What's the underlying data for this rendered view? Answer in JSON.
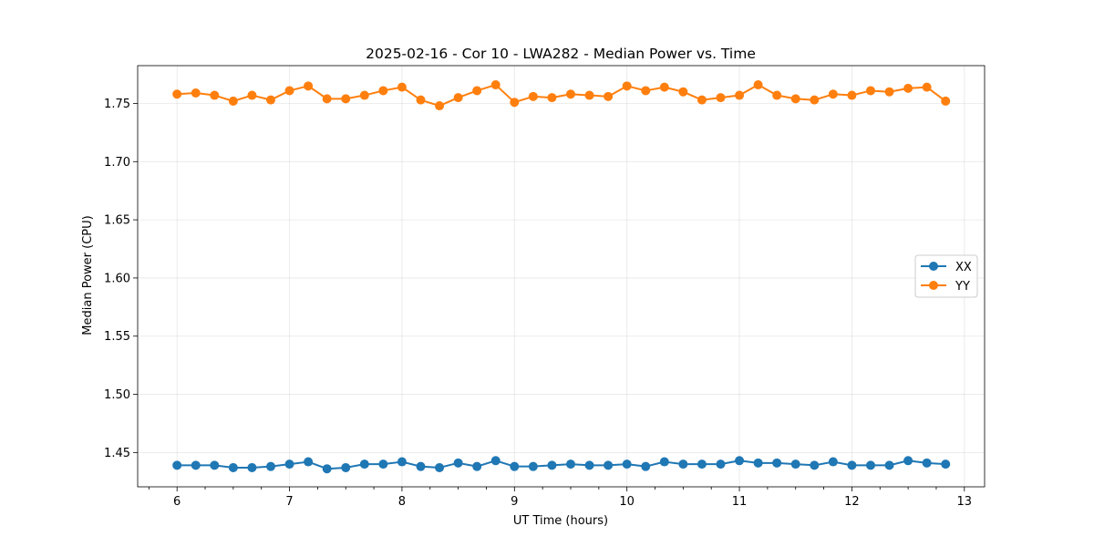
{
  "chart_data": {
    "type": "line",
    "title": "2025-02-16 - Cor 10 - LWA282 - Median Power vs. Time",
    "xlabel": "UT Time (hours)",
    "ylabel": "Median Power (CPU)",
    "xlim": [
      5.65,
      13.18
    ],
    "ylim": [
      1.4205,
      1.7825
    ],
    "xticks": [
      6,
      7,
      8,
      9,
      10,
      11,
      12,
      13
    ],
    "xtick_labels": [
      "6",
      "7",
      "8",
      "9",
      "10",
      "11",
      "12",
      "13"
    ],
    "minor_xticks": [
      5.75,
      6.25,
      6.5,
      6.75,
      7.25,
      7.5,
      7.75,
      8.25,
      8.5,
      8.75,
      9.25,
      9.5,
      9.75,
      10.25,
      10.5,
      10.75,
      11.25,
      11.5,
      11.75,
      12.25,
      12.5,
      12.75,
      13.25
    ],
    "yticks": [
      1.45,
      1.5,
      1.55,
      1.6,
      1.65,
      1.7,
      1.75
    ],
    "ytick_labels": [
      "1.45",
      "1.50",
      "1.55",
      "1.60",
      "1.65",
      "1.70",
      "1.75"
    ],
    "grid": true,
    "legend_position": "center-right",
    "x": [
      6.0,
      6.1667,
      6.3333,
      6.5,
      6.6667,
      6.8333,
      7.0,
      7.1667,
      7.3333,
      7.5,
      7.6667,
      7.8333,
      8.0,
      8.1667,
      8.3333,
      8.5,
      8.6667,
      8.8333,
      9.0,
      9.1667,
      9.3333,
      9.5,
      9.6667,
      9.8333,
      10.0,
      10.1667,
      10.3333,
      10.5,
      10.6667,
      10.8333,
      11.0,
      11.1667,
      11.3333,
      11.5,
      11.6667,
      11.8333,
      12.0,
      12.1667,
      12.3333,
      12.5,
      12.6667,
      12.8333
    ],
    "series": [
      {
        "name": "XX",
        "color": "#1f77b4",
        "values": [
          1.439,
          1.439,
          1.439,
          1.437,
          1.437,
          1.438,
          1.44,
          1.442,
          1.436,
          1.437,
          1.44,
          1.44,
          1.442,
          1.438,
          1.437,
          1.441,
          1.438,
          1.443,
          1.438,
          1.438,
          1.439,
          1.44,
          1.439,
          1.439,
          1.44,
          1.438,
          1.442,
          1.44,
          1.44,
          1.44,
          1.443,
          1.441,
          1.441,
          1.44,
          1.439,
          1.442,
          1.439,
          1.439,
          1.439,
          1.443,
          1.441,
          1.44
        ]
      },
      {
        "name": "YY",
        "color": "#ff7f0e",
        "values": [
          1.758,
          1.759,
          1.757,
          1.752,
          1.757,
          1.753,
          1.761,
          1.765,
          1.754,
          1.754,
          1.757,
          1.761,
          1.764,
          1.753,
          1.748,
          1.755,
          1.761,
          1.766,
          1.751,
          1.756,
          1.755,
          1.758,
          1.757,
          1.756,
          1.765,
          1.761,
          1.764,
          1.76,
          1.753,
          1.755,
          1.757,
          1.766,
          1.757,
          1.754,
          1.753,
          1.758,
          1.757,
          1.761,
          1.76,
          1.763,
          1.764,
          1.752
        ]
      }
    ]
  }
}
